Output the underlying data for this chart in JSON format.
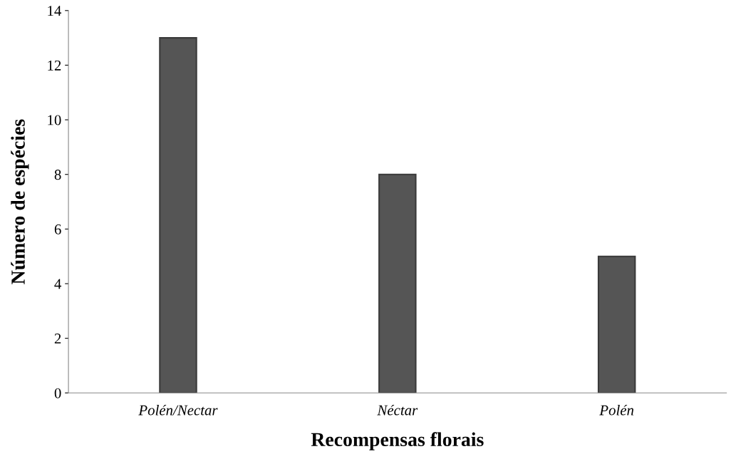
{
  "chart_data": {
    "type": "bar",
    "xlabel": "Recompensas florais",
    "ylabel": "Número de espécies",
    "categories": [
      "Polén/Nectar",
      "Néctar",
      "Polén"
    ],
    "values": [
      13,
      8,
      5
    ],
    "color": "#555555",
    "ylim": [
      0,
      14
    ],
    "yticks": [
      0,
      2,
      4,
      6,
      8,
      10,
      12,
      14
    ],
    "grid": false,
    "legend": false
  }
}
